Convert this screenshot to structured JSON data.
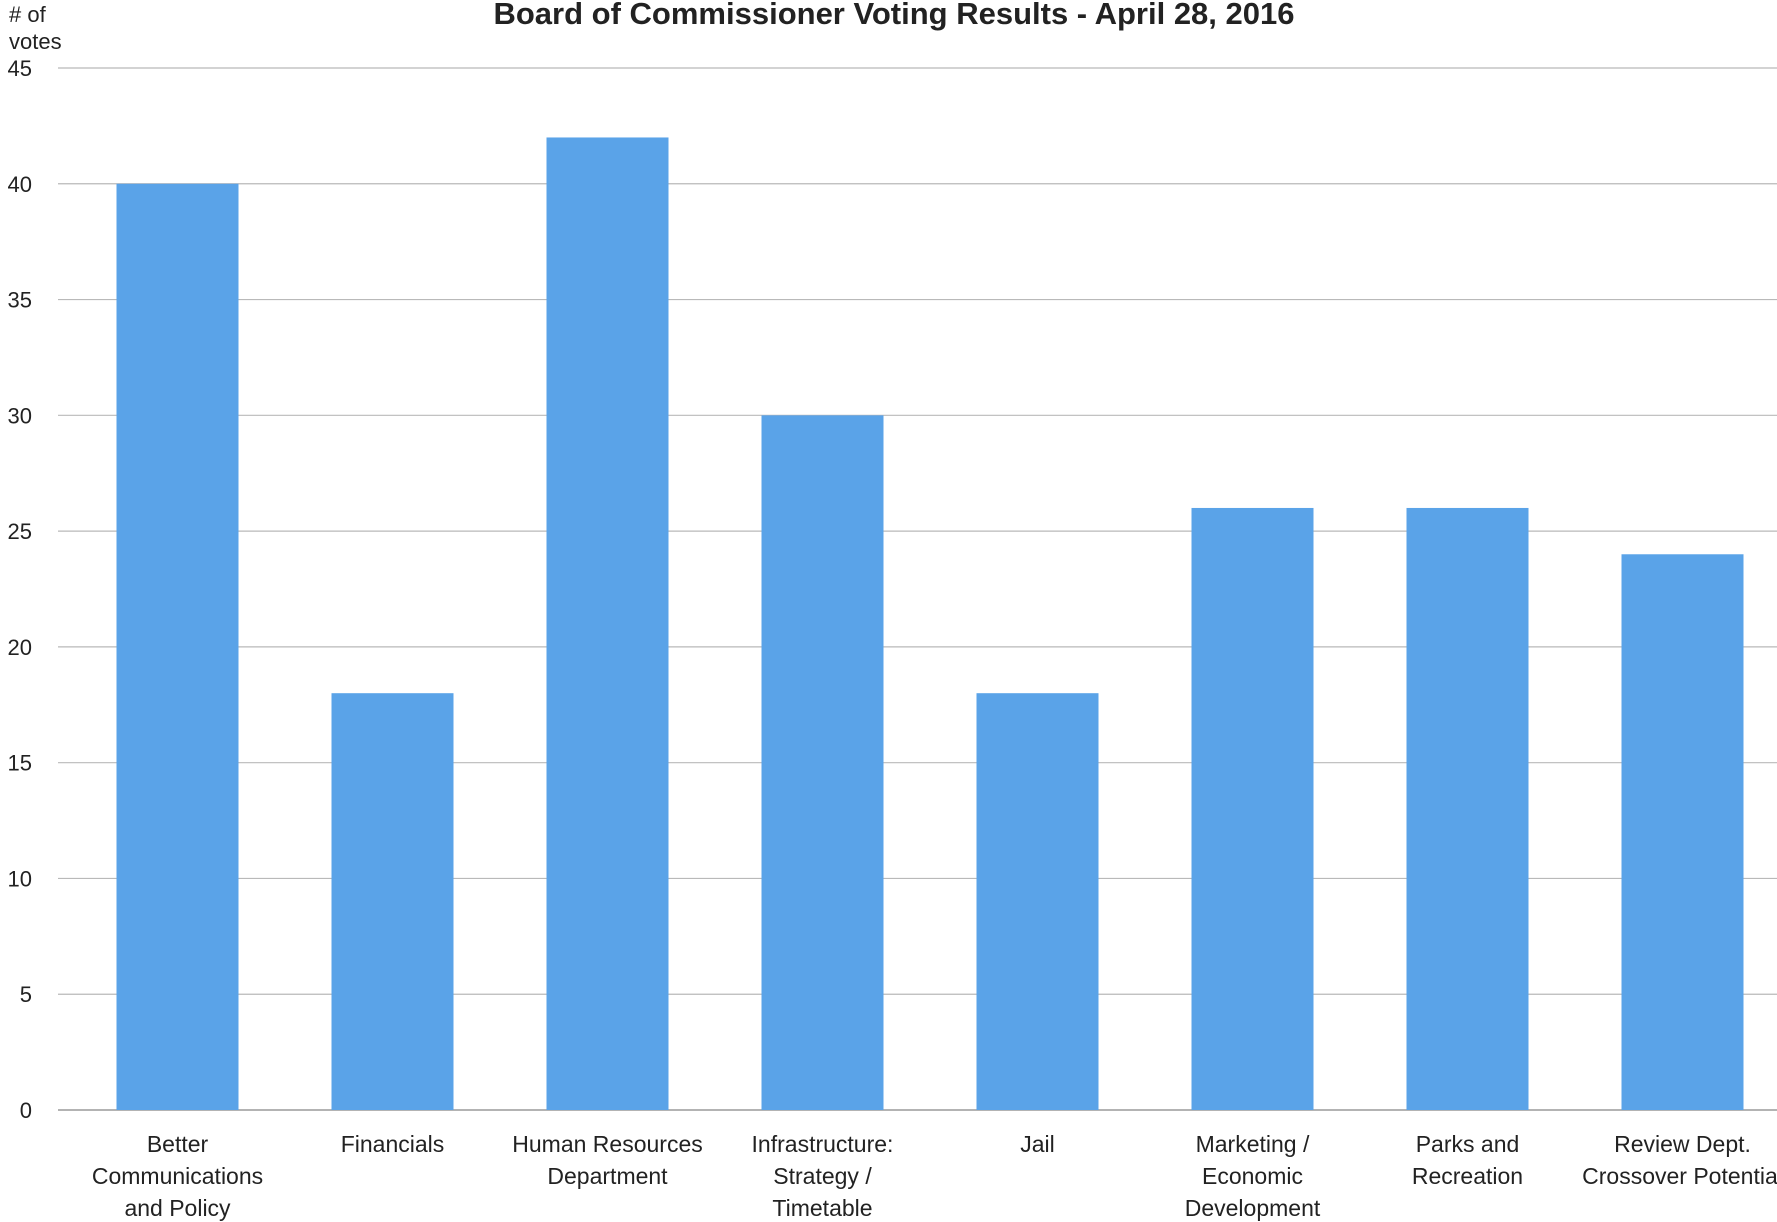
{
  "chart_data": {
    "type": "bar",
    "title": "Board of Commissioner Voting Results - April 28, 2016",
    "ylabel_lines": [
      "# of",
      "votes"
    ],
    "xlabel": "",
    "ylim": [
      0,
      45
    ],
    "y_ticks": [
      0,
      5,
      10,
      15,
      20,
      25,
      30,
      35,
      40,
      45
    ],
    "grid": true,
    "legend": "none",
    "bar_color": "#5aa3e8",
    "categories": [
      {
        "lines": [
          "Better",
          "Communications",
          "and Policy"
        ]
      },
      {
        "lines": [
          "Financials"
        ]
      },
      {
        "lines": [
          "Human Resources",
          "Department"
        ]
      },
      {
        "lines": [
          "Infrastructure:",
          "Strategy /",
          "Timetable"
        ]
      },
      {
        "lines": [
          "Jail"
        ]
      },
      {
        "lines": [
          "Marketing /",
          "Economic",
          "Development"
        ]
      },
      {
        "lines": [
          "Parks and",
          "Recreation"
        ]
      },
      {
        "lines": [
          "Review Dept.",
          "Crossover Potential"
        ]
      }
    ],
    "values": [
      40,
      18,
      42,
      30,
      18,
      26,
      26,
      24
    ]
  }
}
